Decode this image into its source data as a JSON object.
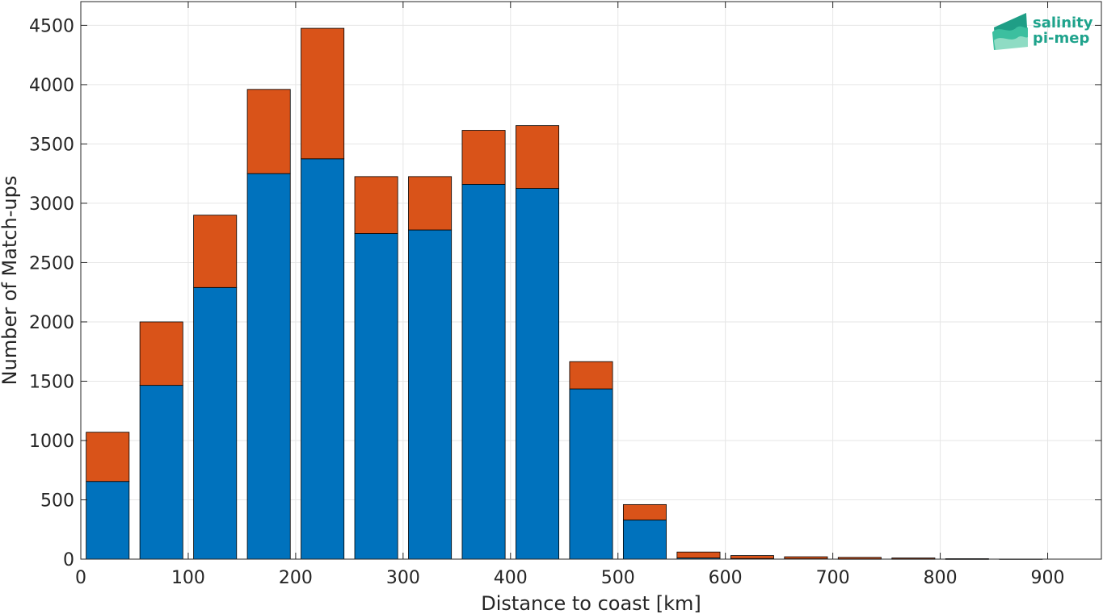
{
  "chart_data": {
    "type": "bar",
    "stacked": true,
    "x": [
      25,
      75,
      125,
      175,
      225,
      275,
      325,
      375,
      425,
      475,
      525,
      575,
      625,
      675,
      725,
      775,
      825,
      875
    ],
    "bar_width": 40,
    "series": [
      {
        "color": "#0072bd",
        "values": [
          655,
          1465,
          2290,
          3250,
          3375,
          2745,
          2775,
          3160,
          3125,
          1435,
          330,
          10,
          5,
          3,
          2,
          2,
          1,
          0
        ]
      },
      {
        "color": "#d95319",
        "values": [
          415,
          535,
          610,
          710,
          1100,
          480,
          450,
          455,
          530,
          230,
          130,
          50,
          25,
          17,
          13,
          8,
          3,
          1
        ]
      }
    ],
    "xlabel": "Distance to coast [km]",
    "ylabel": "Number of Match-ups",
    "xlim": [
      0,
      950
    ],
    "ylim": [
      0,
      4700
    ],
    "xticks": [
      0,
      100,
      200,
      300,
      400,
      500,
      600,
      700,
      800,
      900
    ],
    "yticks": [
      0,
      500,
      1000,
      1500,
      2000,
      2500,
      3000,
      3500,
      4000,
      4500
    ],
    "grid": true
  },
  "logo": {
    "line1": "salinity",
    "line2": "pi-mep"
  }
}
